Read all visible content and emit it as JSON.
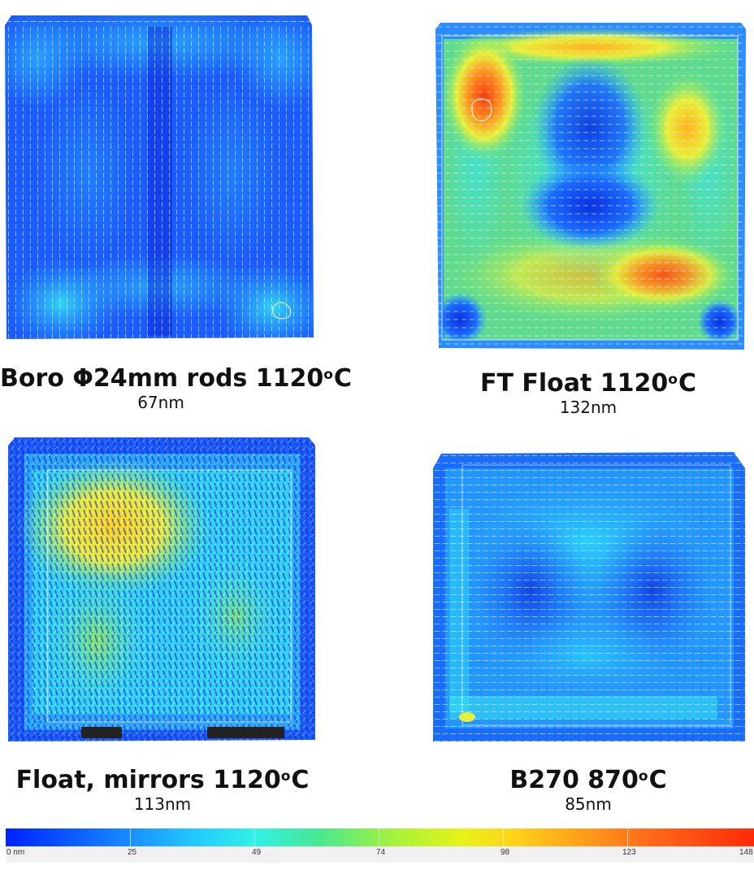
{
  "panels": [
    {
      "title_main": "Boro Φ24mm rods 1120",
      "title_deg": "o",
      "title_unit": "C",
      "value": "67nm"
    },
    {
      "title_main": "FT Float 1120",
      "title_deg": "o",
      "title_unit": "C",
      "value": "132nm"
    },
    {
      "title_main": "Float, mirrors 1120",
      "title_deg": "o",
      "title_unit": "C",
      "value": "113nm"
    },
    {
      "title_main": "B270 870",
      "title_deg": "o",
      "title_unit": "C",
      "value": "85nm"
    }
  ],
  "colorbar": {
    "ticks": [
      "0 nm",
      "25",
      "49",
      "74",
      "98",
      "123",
      "148"
    ],
    "colors": [
      "#0022ff",
      "#1a90ff",
      "#22c8ff",
      "#4ae890",
      "#e6f21a",
      "#ffa41a",
      "#ff2a0a"
    ]
  },
  "colors": {
    "map_base": "#1a5cff",
    "map_dark": "#0a1fd6",
    "map_mid": "#2aa8ff",
    "map_cyan": "#34e4f0",
    "map_green": "#6ae87a",
    "map_yellow": "#e8ef3a",
    "map_orange": "#ff8a1e",
    "map_red": "#ff3b10"
  }
}
